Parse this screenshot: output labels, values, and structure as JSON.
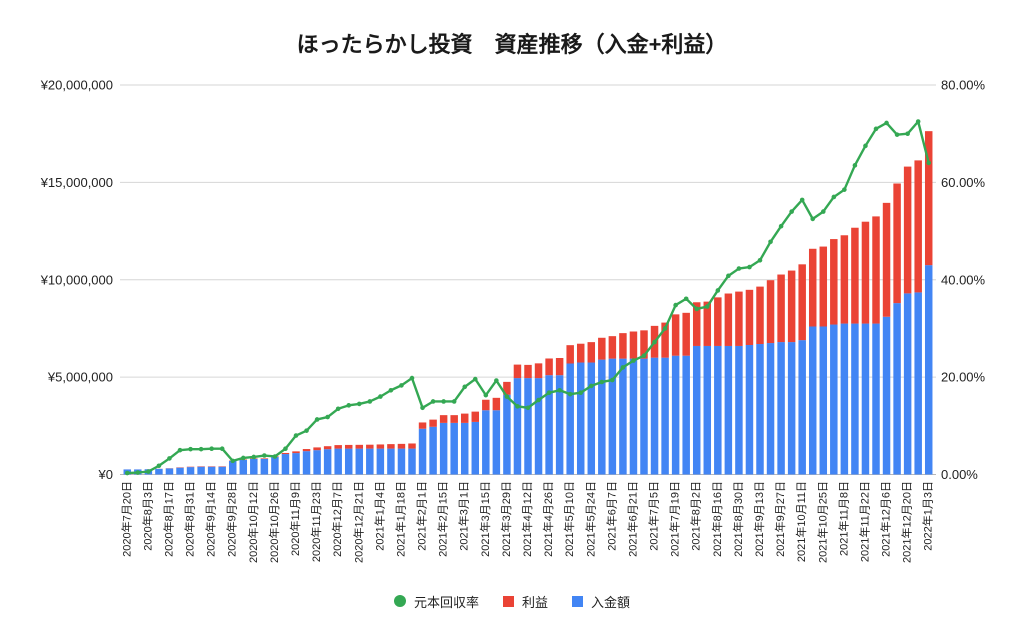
{
  "chart_data": {
    "type": "bar",
    "stacked": true,
    "title": "ほったらかし投資　資産推移（入金+利益）",
    "xlabel": "",
    "ylabel": "",
    "grid": true,
    "legend": "bottom",
    "x_tick_labels": [
      "2020年7月20日",
      "2020年8月3日",
      "2020年8月17日",
      "2020年8月31日",
      "2020年9月14日",
      "2020年9月28日",
      "2020年10月12日",
      "2020年10月26日",
      "2020年11月9日",
      "2020年11月23日",
      "2020年12月7日",
      "2020年12月21日",
      "2021年1月4日",
      "2021年1月18日",
      "2021年2月1日",
      "2021年2月15日",
      "2021年3月1日",
      "2021年3月15日",
      "2021年3月29日",
      "2021年4月12日",
      "2021年4月26日",
      "2021年5月10日",
      "2021年5月24日",
      "2021年6月7日",
      "2021年6月21日",
      "2021年7月5日",
      "2021年7月19日",
      "2021年8月2日",
      "2021年8月16日",
      "2021年8月30日",
      "2021年9月13日",
      "2021年9月27日",
      "2021年10月11日",
      "2021年10月25日",
      "2021年11月8日",
      "2021年11月22日",
      "2021年12月6日",
      "2021年12月20日",
      "2022年1月3日"
    ],
    "y_left": {
      "range": [
        0,
        20000000
      ],
      "ticks": [
        "¥0",
        "¥5,000,000",
        "¥10,000,000",
        "¥15,000,000",
        "¥20,000,000"
      ]
    },
    "y_right": {
      "range": [
        0,
        80
      ],
      "ticks": [
        "0.00%",
        "20.00%",
        "40.00%",
        "60.00%",
        "80.00%"
      ]
    },
    "series": [
      {
        "name": "元本回収率",
        "type": "line",
        "axis": "right",
        "color": "#34A853",
        "values": [
          0.3,
          0.4,
          0.6,
          1.8,
          3.3,
          5.0,
          5.2,
          5.2,
          5.3,
          5.3,
          2.8,
          3.4,
          3.6,
          3.9,
          3.7,
          5.3,
          8.0,
          9.0,
          11.3,
          11.8,
          13.5,
          14.2,
          14.5,
          15.0,
          16.0,
          17.3,
          18.3,
          19.8,
          13.7,
          15.0,
          15.0,
          15.0,
          18.0,
          19.6,
          16.3,
          19.3,
          16.0,
          14.0,
          13.7,
          15.3,
          16.8,
          17.3,
          16.5,
          16.8,
          18.2,
          19.0,
          19.4,
          22.0,
          23.4,
          24.4,
          27.2,
          30.0,
          34.8,
          36.1,
          34.0,
          34.5,
          37.8,
          40.8,
          42.3,
          42.6,
          44.0,
          47.8,
          51.0,
          54.0,
          56.4,
          52.5,
          54.0,
          57.0,
          58.5,
          63.5,
          67.5,
          71.0,
          72.2,
          69.8,
          70.0,
          72.5,
          64.0
        ]
      },
      {
        "name": "利益",
        "type": "bar",
        "axis": "left",
        "color": "#EA4335",
        "values": [
          1000,
          1000,
          2000,
          5000,
          10000,
          18000,
          20000,
          21000,
          21000,
          21000,
          20000,
          26000,
          29000,
          31000,
          33000,
          56000,
          88000,
          108000,
          141000,
          153000,
          180000,
          189000,
          193000,
          200000,
          213000,
          230000,
          243000,
          263000,
          322000,
          368000,
          398000,
          398000,
          477000,
          529000,
          538000,
          637000,
          656000,
          693000,
          678000,
          757000,
          857000,
          882000,
          941000,
          966000,
          1047000,
          1121000,
          1154000,
          1309000,
          1392000,
          1452000,
          1632000,
          1800000,
          2123000,
          2202000,
          2244000,
          2277000,
          2495000,
          2693000,
          2792000,
          2833000,
          2948000,
          3227000,
          3468000,
          3672000,
          3892000,
          3990000,
          4104000,
          4389000,
          4534000,
          4921000,
          5231000,
          5503000,
          5848000,
          6142000,
          6510000,
          6779000,
          6880000
        ]
      },
      {
        "name": "入金額",
        "type": "bar",
        "axis": "left",
        "color": "#4285F4",
        "values": [
          260000,
          260000,
          270000,
          290000,
          310000,
          350000,
          380000,
          400000,
          400000,
          400000,
          700000,
          750000,
          800000,
          800000,
          900000,
          1050000,
          1100000,
          1200000,
          1250000,
          1300000,
          1330000,
          1330000,
          1330000,
          1330000,
          1330000,
          1330000,
          1330000,
          1330000,
          2350000,
          2450000,
          2650000,
          2650000,
          2650000,
          2700000,
          3300000,
          3300000,
          4100000,
          4950000,
          4950000,
          4950000,
          5100000,
          5100000,
          5700000,
          5750000,
          5750000,
          5900000,
          5950000,
          5950000,
          5950000,
          5950000,
          6000000,
          6000000,
          6100000,
          6100000,
          6600000,
          6600000,
          6600000,
          6600000,
          6600000,
          6650000,
          6700000,
          6750000,
          6800000,
          6800000,
          6900000,
          7600000,
          7600000,
          7700000,
          7750000,
          7750000,
          7750000,
          7750000,
          8100000,
          8800000,
          9300000,
          9350000,
          10750000
        ]
      }
    ]
  }
}
